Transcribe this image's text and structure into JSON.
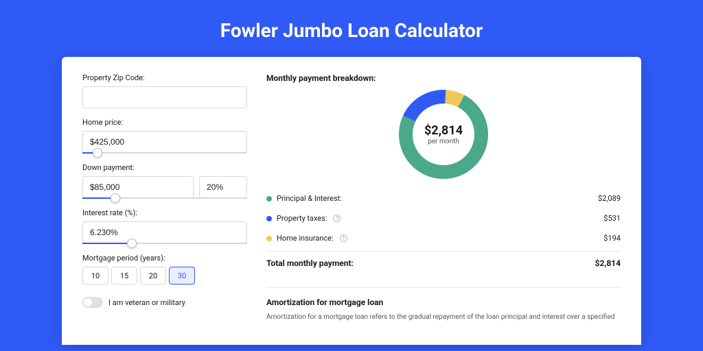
{
  "page": {
    "title": "Fowler Jumbo Loan Calculator"
  },
  "colors": {
    "bg": "#2f5af5",
    "card": "#ffffff",
    "principal": "#4aa98a",
    "taxes": "#2f5af5",
    "insurance": "#f1c857"
  },
  "form": {
    "zip": {
      "label": "Property Zip Code:",
      "value": ""
    },
    "home_price": {
      "label": "Home price:",
      "value": "$425,000",
      "slider_pct": 9
    },
    "down_payment": {
      "label": "Down payment:",
      "amount": "$85,000",
      "percent": "20%",
      "slider_pct": 20
    },
    "interest": {
      "label": "Interest rate (%):",
      "value": "6.230%",
      "slider_pct": 30
    },
    "period": {
      "label": "Mortgage period (years):",
      "options": [
        "10",
        "15",
        "20",
        "30"
      ],
      "selected": "30"
    },
    "veteran": {
      "label": "I am veteran or military",
      "checked": false
    }
  },
  "breakdown": {
    "title": "Monthly payment breakdown:",
    "center_amount": "$2,814",
    "center_sub": "per month",
    "items": [
      {
        "label": "Principal & Interest:",
        "value": "$2,089",
        "color": "#4aa98a",
        "pct": 74.2,
        "info": false
      },
      {
        "label": "Property taxes:",
        "value": "$531",
        "color": "#2f5af5",
        "pct": 18.9,
        "info": true
      },
      {
        "label": "Home insurance:",
        "value": "$194",
        "color": "#f1c857",
        "pct": 6.9,
        "info": true
      }
    ],
    "total_label": "Total monthly payment:",
    "total_value": "$2,814",
    "donut": {
      "thickness": 20,
      "radius": 55,
      "gap_deg": 0,
      "start_deg": -155
    }
  },
  "amortization": {
    "title": "Amortization for mortgage loan",
    "text": "Amortization for a mortgage loan refers to the gradual repayment of the loan principal and interest over a specified"
  }
}
